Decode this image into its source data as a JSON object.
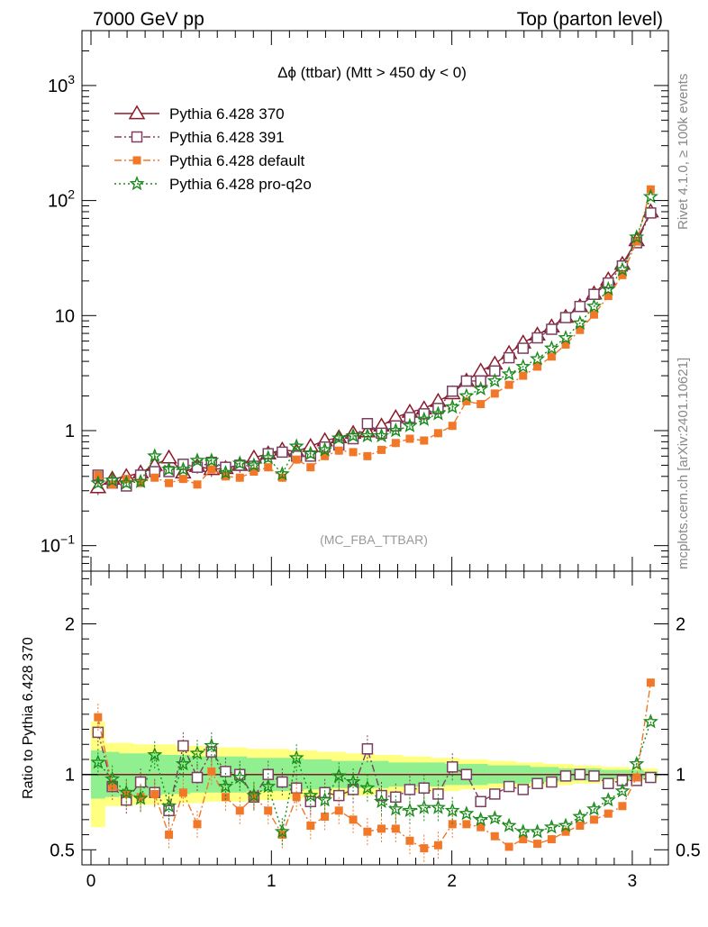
{
  "header": {
    "left": "7000 GeV pp",
    "right": "Top (parton level)"
  },
  "side_text": {
    "rivet": "Rivet 4.1.0, ≥ 100k events",
    "mcplots": "mcplots.cern.ch [arXiv:2401.10621]"
  },
  "chart_data": {
    "type": "line",
    "title": "Δϕ (ttbar) (Mtt > 450 dy < 0)",
    "watermark": "(MC_FBA_TTBAR)",
    "xlabel": "",
    "xlim": [
      -0.05,
      3.2
    ],
    "xticks": [
      0,
      1,
      2,
      3
    ],
    "main": {
      "yscale": "log",
      "ylim": [
        0.06,
        3000
      ],
      "yticks": [
        {
          "value": 0.1,
          "base": "10",
          "exp": "−1"
        },
        {
          "value": 1,
          "base": "1",
          "exp": ""
        },
        {
          "value": 10,
          "base": "10",
          "exp": ""
        },
        {
          "value": 100,
          "base": "10",
          "exp": "2"
        },
        {
          "value": 1000,
          "base": "10",
          "exp": "3"
        }
      ]
    },
    "ratio": {
      "ylabel": "Ratio to Pythia 6.428 370",
      "ylim": [
        0.4,
        2.35
      ],
      "yticks": [
        0.5,
        1,
        2
      ],
      "ytick_labels": [
        "0.5",
        "1",
        "2"
      ]
    },
    "x": [
      0.039,
      0.118,
      0.196,
      0.275,
      0.353,
      0.432,
      0.511,
      0.589,
      0.668,
      0.746,
      0.825,
      0.903,
      0.982,
      1.06,
      1.139,
      1.217,
      1.296,
      1.374,
      1.453,
      1.532,
      1.61,
      1.689,
      1.767,
      1.846,
      1.924,
      2.003,
      2.081,
      2.16,
      2.238,
      2.317,
      2.395,
      2.474,
      2.553,
      2.631,
      2.71,
      2.788,
      2.867,
      2.945,
      3.024,
      3.102
    ],
    "series": [
      {
        "name": "Pythia 6.428 370",
        "color": "#8b1a2b",
        "marker": "triangle",
        "dash": "",
        "values": [
          0.32,
          0.38,
          0.4,
          0.43,
          0.5,
          0.58,
          0.43,
          0.49,
          0.46,
          0.47,
          0.5,
          0.58,
          0.63,
          0.68,
          0.66,
          0.73,
          0.82,
          0.87,
          0.95,
          0.98,
          1.1,
          1.3,
          1.45,
          1.55,
          1.8,
          2.1,
          2.7,
          3.3,
          3.8,
          4.7,
          5.8,
          6.8,
          8.0,
          9.7,
          12.0,
          15.5,
          20.5,
          28.0,
          45.0,
          80.0
        ],
        "ratio": [
          1,
          1,
          1,
          1,
          1,
          1,
          1,
          1,
          1,
          1,
          1,
          1,
          1,
          1,
          1,
          1,
          1,
          1,
          1,
          1,
          1,
          1,
          1,
          1,
          1,
          1,
          1,
          1,
          1,
          1,
          1,
          1,
          1,
          1,
          1,
          1,
          1,
          1,
          1,
          1
        ]
      },
      {
        "name": "Pythia 6.428 391",
        "color": "#7a4060",
        "marker": "square-open",
        "dash": "8,3,2,3",
        "values": [
          0.41,
          0.35,
          0.33,
          0.41,
          0.44,
          0.44,
          0.51,
          0.48,
          0.53,
          0.48,
          0.5,
          0.49,
          0.63,
          0.65,
          0.6,
          0.6,
          0.72,
          0.75,
          0.85,
          1.15,
          0.95,
          1.1,
          1.3,
          1.4,
          1.56,
          2.2,
          2.7,
          2.7,
          3.3,
          4.3,
          5.2,
          6.4,
          7.6,
          9.6,
          12.0,
          15.3,
          19.2,
          27.0,
          43.0,
          78.0
        ],
        "ratio": [
          1.28,
          0.92,
          0.83,
          0.95,
          0.88,
          0.76,
          1.19,
          0.98,
          1.15,
          1.02,
          1.0,
          0.85,
          1.0,
          0.95,
          0.91,
          0.82,
          0.88,
          0.86,
          0.9,
          1.17,
          0.86,
          0.85,
          0.9,
          0.91,
          0.87,
          1.05,
          1.0,
          0.82,
          0.87,
          0.92,
          0.9,
          0.94,
          0.95,
          0.99,
          1.0,
          0.99,
          0.94,
          0.96,
          0.96,
          0.98
        ]
      },
      {
        "name": "Pythia 6.428 default",
        "color": "#f07828",
        "marker": "square-filled",
        "dash": "8,3,2,3",
        "values": [
          0.41,
          0.34,
          0.38,
          0.35,
          0.39,
          0.35,
          0.38,
          0.34,
          0.46,
          0.4,
          0.39,
          0.44,
          0.48,
          0.39,
          0.56,
          0.48,
          0.6,
          0.67,
          0.65,
          0.6,
          0.68,
          0.78,
          0.85,
          0.82,
          0.95,
          1.1,
          1.8,
          1.7,
          2.1,
          2.5,
          3.0,
          3.6,
          4.4,
          5.6,
          7.5,
          10.2,
          14.8,
          22.5,
          44.0,
          125.0
        ],
        "ratio": [
          1.38,
          0.92,
          0.87,
          0.85,
          0.87,
          0.6,
          0.88,
          0.67,
          1.02,
          0.85,
          0.76,
          0.85,
          0.76,
          0.6,
          0.85,
          0.66,
          0.72,
          0.76,
          0.7,
          0.62,
          0.64,
          0.64,
          0.56,
          0.51,
          0.53,
          0.67,
          0.67,
          0.65,
          0.59,
          0.52,
          0.57,
          0.54,
          0.57,
          0.62,
          0.66,
          0.7,
          0.74,
          0.79,
          0.98,
          1.61
        ]
      },
      {
        "name": "Pythia 6.428 pro-q2o",
        "color": "#1a8a1a",
        "marker": "star",
        "dash": "2,3",
        "values": [
          0.35,
          0.37,
          0.35,
          0.36,
          0.6,
          0.46,
          0.46,
          0.55,
          0.55,
          0.43,
          0.52,
          0.5,
          0.58,
          0.42,
          0.73,
          0.63,
          0.68,
          0.86,
          0.9,
          0.9,
          0.9,
          1.0,
          1.1,
          1.25,
          1.4,
          1.6,
          2.0,
          2.3,
          2.7,
          3.1,
          3.6,
          4.2,
          5.2,
          6.4,
          8.6,
          12.0,
          17.0,
          25.0,
          48.0,
          108.0
        ],
        "ratio": [
          1.08,
          0.97,
          0.88,
          0.84,
          1.13,
          0.79,
          1.07,
          1.14,
          1.19,
          0.92,
          0.98,
          0.86,
          0.92,
          0.62,
          1.11,
          0.86,
          0.83,
          0.99,
          0.95,
          0.91,
          0.82,
          0.77,
          0.76,
          0.78,
          0.78,
          0.76,
          0.74,
          0.7,
          0.71,
          0.66,
          0.62,
          0.62,
          0.65,
          0.66,
          0.72,
          0.77,
          0.83,
          0.89,
          1.07,
          1.35
        ]
      }
    ],
    "uncertainty_bands": {
      "green_halfwidth": [
        0.16,
        0.15,
        0.14,
        0.14,
        0.14,
        0.13,
        0.13,
        0.12,
        0.12,
        0.12,
        0.12,
        0.11,
        0.11,
        0.11,
        0.11,
        0.1,
        0.1,
        0.09,
        0.09,
        0.09,
        0.09,
        0.08,
        0.08,
        0.08,
        0.08,
        0.07,
        0.07,
        0.07,
        0.06,
        0.06,
        0.06,
        0.05,
        0.05,
        0.04,
        0.04,
        0.04,
        0.03,
        0.03,
        0.03,
        0.02
      ],
      "yellow_halfwidth": [
        0.35,
        0.21,
        0.21,
        0.2,
        0.2,
        0.2,
        0.19,
        0.19,
        0.18,
        0.18,
        0.18,
        0.17,
        0.17,
        0.17,
        0.16,
        0.16,
        0.15,
        0.15,
        0.14,
        0.14,
        0.13,
        0.13,
        0.12,
        0.12,
        0.11,
        0.11,
        0.1,
        0.1,
        0.09,
        0.09,
        0.08,
        0.08,
        0.07,
        0.07,
        0.06,
        0.06,
        0.05,
        0.05,
        0.04,
        0.04
      ]
    }
  }
}
